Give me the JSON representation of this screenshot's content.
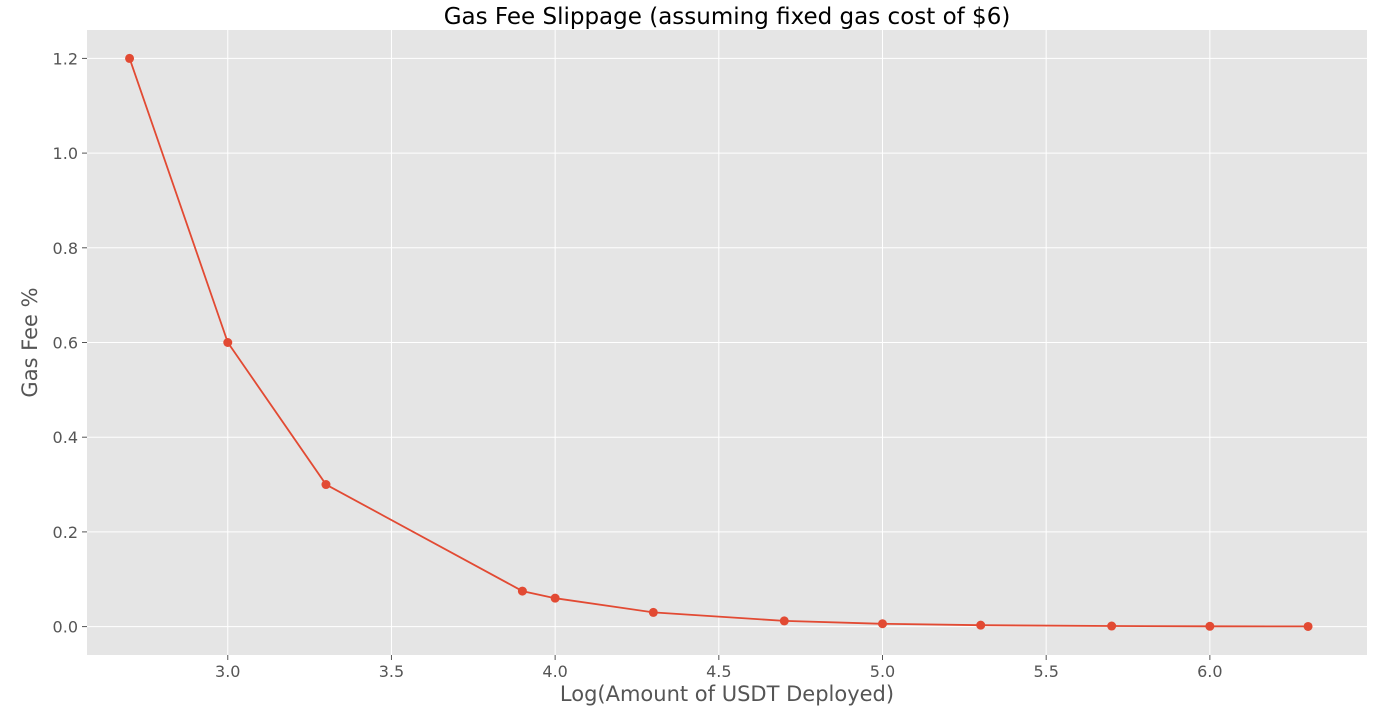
{
  "chart_data": {
    "type": "line",
    "title": "Gas Fee Slippage (assuming fixed gas cost of $6)",
    "xlabel": "Log(Amount of USDT Deployed)",
    "ylabel": "Gas Fee %",
    "xlim": [
      2.57,
      6.48
    ],
    "ylim": [
      -0.06,
      1.26
    ],
    "x_ticks": [
      3.0,
      3.5,
      4.0,
      4.5,
      5.0,
      5.5,
      6.0
    ],
    "x_tick_labels": [
      "3.0",
      "3.5",
      "4.0",
      "4.5",
      "5.0",
      "5.5",
      "6.0"
    ],
    "y_ticks": [
      0.0,
      0.2,
      0.4,
      0.6,
      0.8,
      1.0,
      1.2
    ],
    "y_tick_labels": [
      "0.0",
      "0.2",
      "0.4",
      "0.6",
      "0.8",
      "1.0",
      "1.2"
    ],
    "grid": true,
    "style": "ggplot",
    "colors": {
      "background": "#e5e5e5",
      "grid": "#ffffff",
      "series": "#e24a33"
    },
    "series": [
      {
        "x": [
          2.7,
          3.0,
          3.3,
          3.9,
          4.0,
          4.3,
          4.7,
          5.0,
          5.3,
          5.7,
          6.0,
          6.3
        ],
        "values": [
          1.2,
          0.6,
          0.3,
          0.075,
          0.06,
          0.03,
          0.012,
          0.006,
          0.003,
          0.0012,
          0.0006,
          0.0003
        ]
      }
    ]
  }
}
